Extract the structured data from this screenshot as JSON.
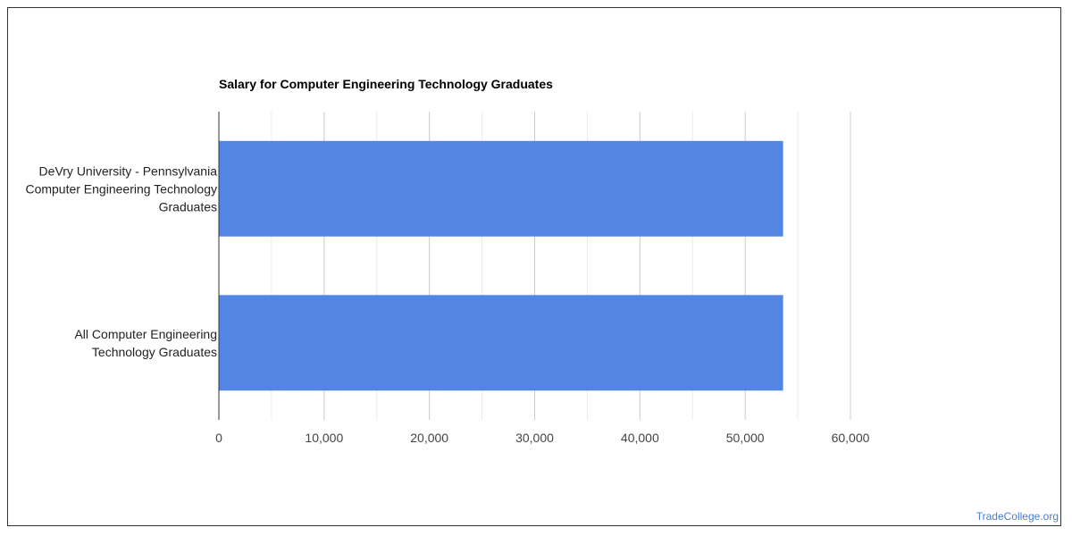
{
  "chart_data": {
    "type": "bar",
    "orientation": "horizontal",
    "title": "Salary for Computer Engineering Technology Graduates",
    "categories": [
      [
        "DeVry University - Pennsylvania",
        "Computer Engineering Technology",
        "Graduates"
      ],
      [
        "All Computer Engineering",
        "Technology Graduates"
      ]
    ],
    "values": [
      53600,
      53600
    ],
    "xlim": [
      0,
      60000
    ],
    "xticks": [
      0,
      10000,
      20000,
      30000,
      40000,
      50000,
      60000
    ],
    "xtick_labels": [
      "0",
      "10,000",
      "20,000",
      "30,000",
      "40,000",
      "50,000",
      "60,000"
    ],
    "grid": true,
    "bar_color": "#5386e4"
  },
  "watermark": "TradeCollege.org"
}
